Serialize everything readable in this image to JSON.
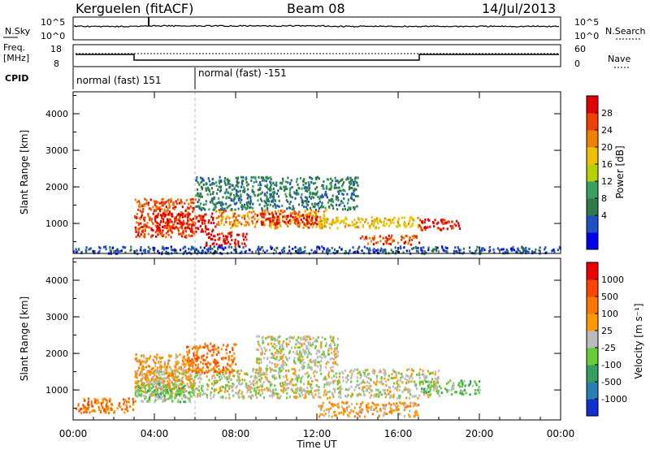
{
  "header": {
    "station": "Kerguelen (fitACF)",
    "beam": "Beam 08",
    "date": "14/Jul/2013"
  },
  "strips": {
    "nsky_label": "N.Sky",
    "nsearch_label": "N.Search",
    "nsky_ticks": [
      "10^5",
      "10^0"
    ],
    "nsearch_ticks": [
      "10^5",
      "10^0"
    ],
    "freq_label_1": "Freq.",
    "freq_label_2": "[MHz]",
    "freq_ticks": [
      "18",
      "8"
    ],
    "nave_label": "Nave",
    "nave_ticks": [
      "60",
      "0"
    ],
    "cpid_label": "CPID",
    "cpid_segments": [
      "normal (fast) 151",
      "normal (fast) -151"
    ]
  },
  "chart_data": [
    {
      "type": "heatmap",
      "panel": "power",
      "ylabel": "Slant Range [km]",
      "xlabel": "",
      "ylim": [
        180,
        4600
      ],
      "yticks": [
        "1000",
        "2000",
        "3000",
        "4000"
      ],
      "colorbar_label": "Power [dB]",
      "colorbar_ticks": [
        "28",
        "24",
        "20",
        "16",
        "12",
        "8",
        "4"
      ],
      "colors": [
        "#0000ee",
        "#1e4fc4",
        "#2e7a4a",
        "#3aa060",
        "#b8d000",
        "#f0c000",
        "#f08000",
        "#f04000",
        "#e00000"
      ],
      "regions": [
        {
          "x": [
            3.0,
            6.0
          ],
          "y": [
            650,
            1700
          ],
          "level": 7
        },
        {
          "x": [
            4.0,
            7.0
          ],
          "y": [
            800,
            1300
          ],
          "level": 8
        },
        {
          "x": [
            6.5,
            8.5
          ],
          "y": [
            400,
            800
          ],
          "level": 8
        },
        {
          "x": [
            7.0,
            12.5
          ],
          "y": [
            900,
            1400
          ],
          "level": 6
        },
        {
          "x": [
            9.0,
            12.0
          ],
          "y": [
            1000,
            1300
          ],
          "level": 8
        },
        {
          "x": [
            12.0,
            17.0
          ],
          "y": [
            900,
            1200
          ],
          "level": 5
        },
        {
          "x": [
            14.0,
            17.0
          ],
          "y": [
            450,
            700
          ],
          "level": 7
        },
        {
          "x": [
            17.0,
            19.0
          ],
          "y": [
            850,
            1150
          ],
          "level": 8
        },
        {
          "x": [
            0.0,
            24.0
          ],
          "y": [
            200,
            400
          ],
          "level": 1
        },
        {
          "x": [
            6.0,
            14.0
          ],
          "y": [
            1400,
            2300
          ],
          "level": 2
        }
      ]
    },
    {
      "type": "heatmap",
      "panel": "velocity",
      "ylabel": "Slant Range [km]",
      "xlabel": "Time UT",
      "ylim": [
        180,
        4600
      ],
      "yticks": [
        "1000",
        "2000",
        "3000",
        "4000"
      ],
      "xticks": [
        "00:00",
        "04:00",
        "08:00",
        "12:00",
        "16:00",
        "20:00",
        "00:00"
      ],
      "xlim": [
        0,
        24
      ],
      "colorbar_label": "Velocity [m s⁻¹]",
      "colorbar_ticks": [
        "1000",
        "500",
        "100",
        "25",
        "-25",
        "-100",
        "-500",
        "-1000"
      ],
      "colors": [
        "#1030d0",
        "#2a80b0",
        "#33a060",
        "#66cc33",
        "#bbbbbb",
        "#ff9900",
        "#ff7700",
        "#ff4400",
        "#ee0000"
      ],
      "regions": [
        {
          "x": [
            3.0,
            18.0
          ],
          "y": [
            800,
            1600
          ],
          "level": 4
        },
        {
          "x": [
            3.0,
            6.0
          ],
          "y": [
            1000,
            2000
          ],
          "level": 5
        },
        {
          "x": [
            5.5,
            8.0
          ],
          "y": [
            1500,
            2300
          ],
          "level": 6
        },
        {
          "x": [
            3.0,
            6.0
          ],
          "y": [
            700,
            1200
          ],
          "level": 3
        },
        {
          "x": [
            0.0,
            3.0
          ],
          "y": [
            400,
            800
          ],
          "level": 6
        },
        {
          "x": [
            12.0,
            17.0
          ],
          "y": [
            300,
            700
          ],
          "level": 5
        },
        {
          "x": [
            9.0,
            13.0
          ],
          "y": [
            1600,
            2500
          ],
          "level": 4
        },
        {
          "x": [
            17.0,
            20.0
          ],
          "y": [
            900,
            1300
          ],
          "level": 3
        }
      ]
    }
  ]
}
